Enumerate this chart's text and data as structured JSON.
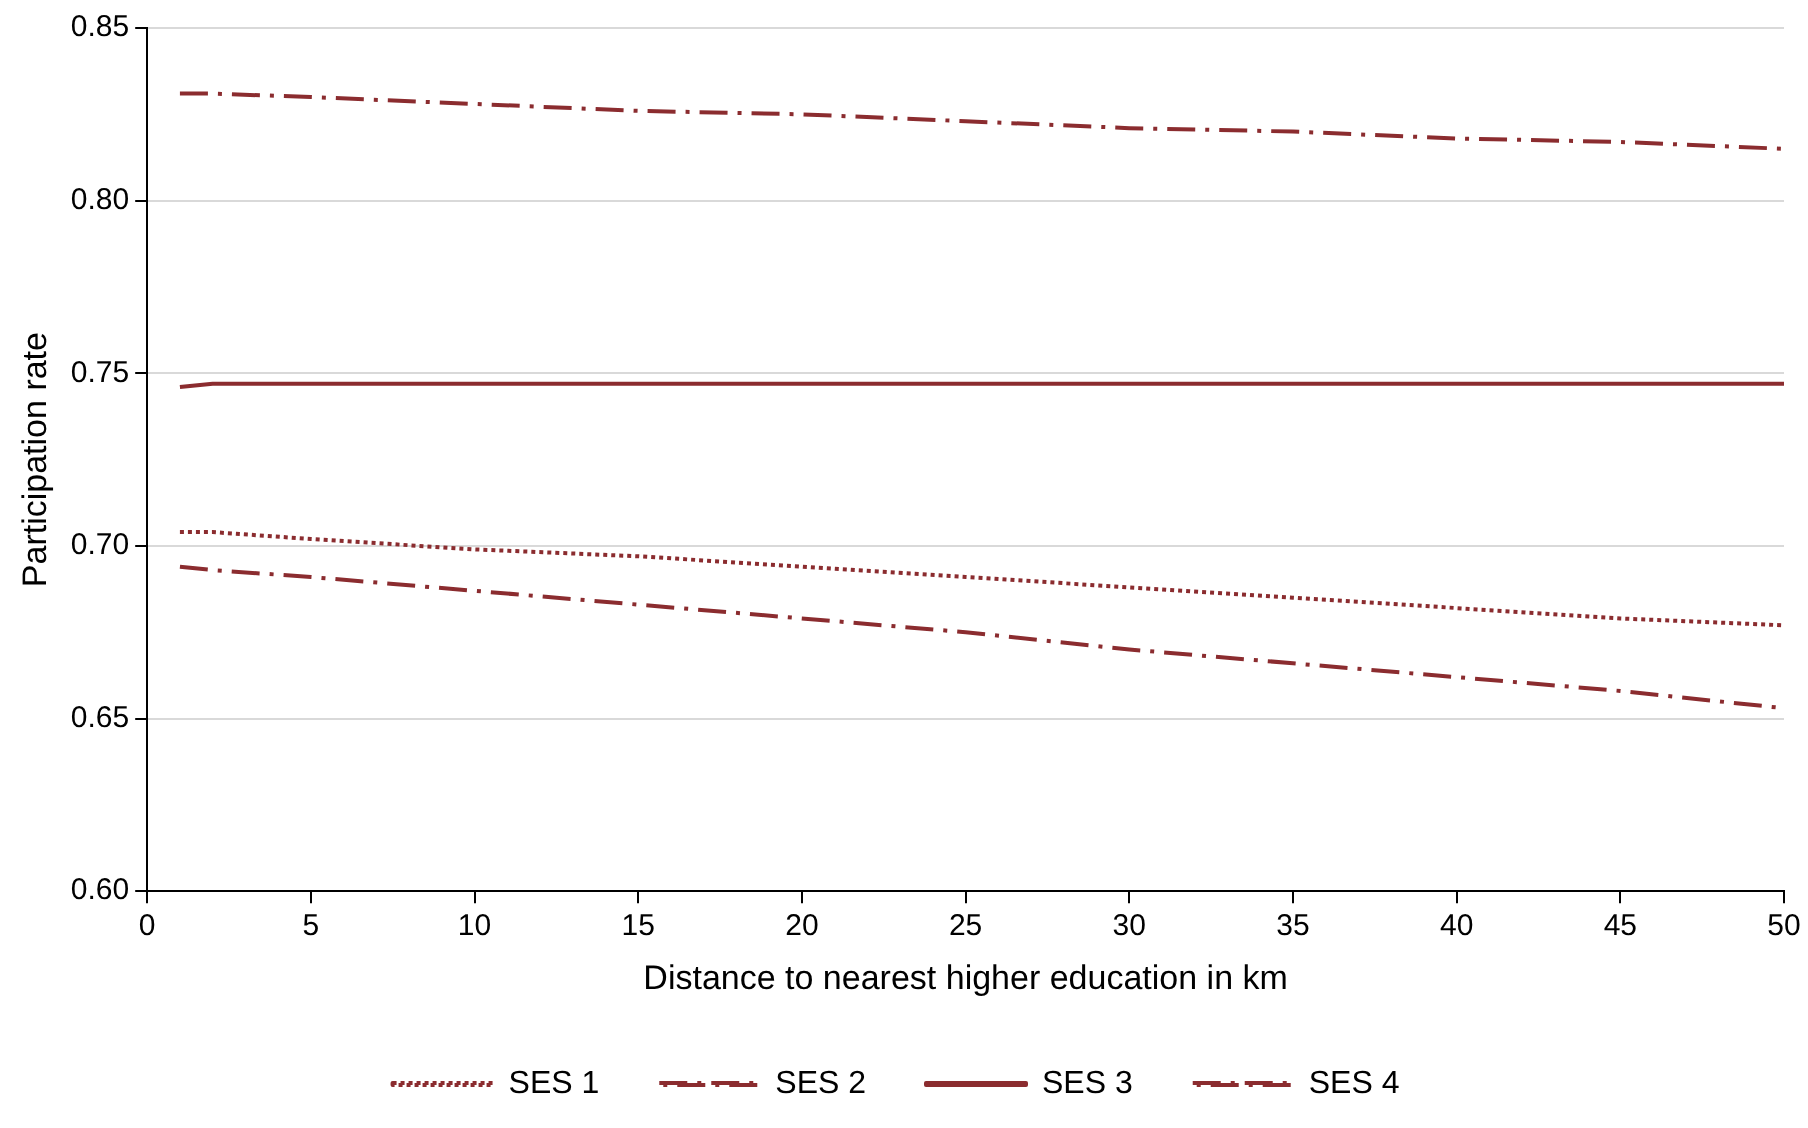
{
  "chart_data": {
    "type": "line",
    "xlabel": "Distance to nearest higher education in km",
    "ylabel": "Participation rate",
    "x": [
      1,
      2,
      5,
      10,
      15,
      20,
      25,
      30,
      35,
      40,
      45,
      50
    ],
    "series": [
      {
        "name": "SES 1",
        "color": "#8b2c2f",
        "line_style": "dotted",
        "values": [
          0.704,
          0.704,
          0.702,
          0.699,
          0.697,
          0.694,
          0.691,
          0.688,
          0.685,
          0.682,
          0.679,
          0.677
        ]
      },
      {
        "name": "SES 2",
        "color": "#8b2c2f",
        "line_style": "dashed",
        "values": [
          0.694,
          0.693,
          0.691,
          0.687,
          0.683,
          0.679,
          0.675,
          0.67,
          0.666,
          0.662,
          0.658,
          0.653
        ]
      },
      {
        "name": "SES 3",
        "color": "#8b2c2f",
        "line_style": "solid",
        "values": [
          0.746,
          0.747,
          0.747,
          0.747,
          0.747,
          0.747,
          0.747,
          0.747,
          0.747,
          0.747,
          0.747,
          0.747
        ]
      },
      {
        "name": "SES 4",
        "color": "#8b2c2f",
        "line_style": "dashed",
        "values": [
          0.831,
          0.831,
          0.83,
          0.828,
          0.826,
          0.825,
          0.823,
          0.821,
          0.82,
          0.818,
          0.817,
          0.815
        ]
      }
    ],
    "xlim": [
      0,
      50
    ],
    "xticks": [
      0,
      5,
      10,
      15,
      20,
      25,
      30,
      35,
      40,
      45,
      50
    ],
    "ylim": [
      0.6,
      0.85
    ],
    "yticks": [
      {
        "value": 0.6,
        "label": "0.60"
      },
      {
        "value": 0.65,
        "label": "0.65"
      },
      {
        "value": 0.7,
        "label": "0.70"
      },
      {
        "value": 0.75,
        "label": "0.75"
      },
      {
        "value": 0.8,
        "label": "0.80"
      },
      {
        "value": 0.85,
        "label": "0.85"
      }
    ],
    "grid": "y",
    "legend": "bottom",
    "marker": "none"
  }
}
